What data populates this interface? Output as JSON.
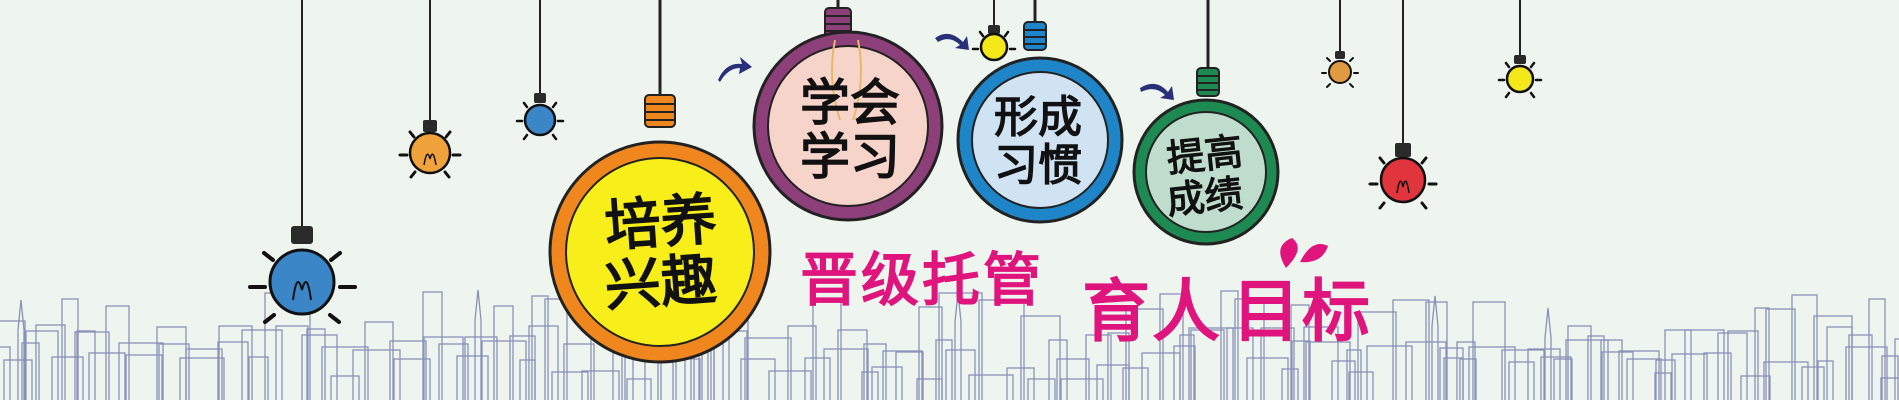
{
  "bulbs": [
    {
      "line1": "培养",
      "line2": "兴趣",
      "color": "#f7ee1a",
      "rim": "#f0871e"
    },
    {
      "line1": "学会",
      "line2": "学习",
      "color": "#f6d4c9",
      "rim": "#8c3f78"
    },
    {
      "line1": "形成",
      "line2": "习惯",
      "color": "#cfe3f3",
      "rim": "#1e86c8"
    },
    {
      "line1": "提高",
      "line2": "成绩",
      "color": "#bfddcc",
      "rim": "#1d8a52"
    }
  ],
  "slogan": {
    "left": "晋级托管",
    "right_a": "育人",
    "right_b": "目标"
  },
  "colors": {
    "background": "#eef5ee",
    "slogan": "#e0147d",
    "arrow": "#28307a",
    "skyline": "#8a90b8"
  }
}
